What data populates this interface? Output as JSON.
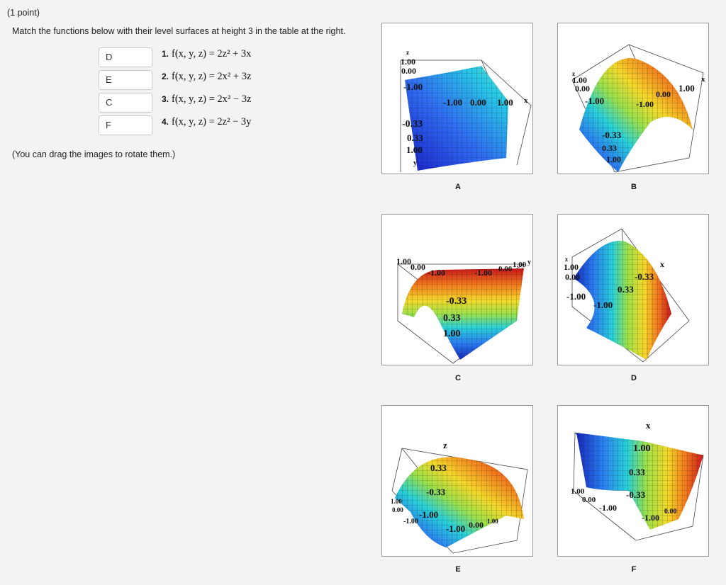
{
  "header": {
    "points": "(1 point)"
  },
  "instructions": "Match the functions below with their level surfaces at height 3 in the table at the right.",
  "drag_note": "(You can drag the images to rotate them.)",
  "answers": [
    "D",
    "E",
    "C",
    "F"
  ],
  "functions": [
    {
      "num": "1.",
      "expr": "f(x, y, z) = 2z² + 3x"
    },
    {
      "num": "2.",
      "expr": "f(x, y, z) = 2x² + 3z"
    },
    {
      "num": "3.",
      "expr": "f(x, y, z) = 2x² − 3z"
    },
    {
      "num": "4.",
      "expr": "f(x, y, z) = 2z² − 3y"
    }
  ],
  "plots": [
    {
      "letter": "A",
      "icon": "surface-plot-image",
      "labels": [
        "z",
        "1.00",
        "0.00",
        "-1.00",
        "-1.00",
        "0.00",
        "1.00",
        "x",
        "-0.33",
        "0.33",
        "1.00",
        "y"
      ]
    },
    {
      "letter": "B",
      "icon": "surface-plot-image",
      "labels": [
        "z",
        "1.00",
        "0.00",
        "-1.00",
        "x",
        "1.00",
        "0.00",
        "-1.00",
        "-0.33",
        "0.33",
        "1.00"
      ]
    },
    {
      "letter": "C",
      "icon": "surface-plot-image",
      "labels": [
        "1.00",
        "0.00",
        "-1.00",
        "-1.00",
        "0.00",
        "1.00",
        "y",
        "-0.33",
        "0.33",
        "1.00"
      ]
    },
    {
      "letter": "D",
      "icon": "surface-plot-image",
      "labels": [
        "z",
        "1.00",
        "0.00",
        "-1.00",
        "-1.00",
        "x",
        "-0.33",
        "0.33"
      ]
    },
    {
      "letter": "E",
      "icon": "surface-plot-image",
      "labels": [
        "z",
        "0.33",
        "-0.33",
        "-1.00",
        "1.00",
        "0.00",
        "-1.00",
        "-1.00",
        "0.00",
        "1.00"
      ]
    },
    {
      "letter": "F",
      "icon": "surface-plot-image",
      "labels": [
        "x",
        "1.00",
        "0.33",
        "-0.33",
        "1.00",
        "0.00",
        "-1.00",
        "-1.00",
        "0.00"
      ]
    }
  ]
}
